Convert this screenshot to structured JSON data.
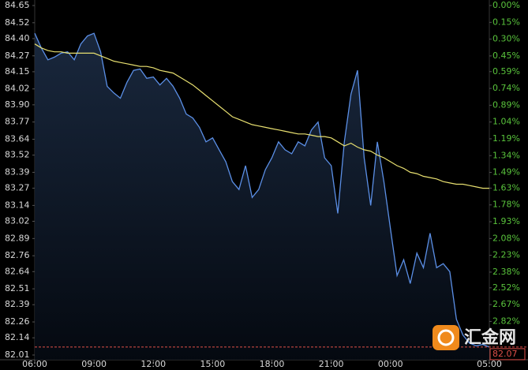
{
  "chart_data": {
    "type": "line",
    "x": [
      "06:00",
      "06:20",
      "06:40",
      "07:00",
      "07:20",
      "07:40",
      "08:00",
      "08:20",
      "08:40",
      "09:00",
      "09:20",
      "09:40",
      "10:00",
      "10:20",
      "10:40",
      "11:00",
      "11:20",
      "11:40",
      "12:00",
      "12:20",
      "12:40",
      "13:00",
      "13:20",
      "13:40",
      "14:00",
      "14:20",
      "14:40",
      "15:00",
      "15:20",
      "15:40",
      "16:00",
      "16:20",
      "16:40",
      "17:00",
      "17:20",
      "17:40",
      "18:00",
      "18:20",
      "18:40",
      "19:00",
      "19:20",
      "19:40",
      "20:00",
      "20:20",
      "20:40",
      "21:00",
      "21:20",
      "21:40",
      "22:00",
      "22:20",
      "22:40",
      "23:00",
      "23:20",
      "23:40",
      "00:00",
      "00:20",
      "00:40",
      "01:00",
      "01:20",
      "01:40",
      "02:00",
      "02:20",
      "02:40",
      "03:00",
      "03:20",
      "03:40",
      "04:00",
      "04:20",
      "04:40",
      "05:00"
    ],
    "series": [
      {
        "color": "#5b8fe6",
        "values": [
          84.44,
          84.33,
          84.24,
          84.26,
          84.29,
          84.3,
          84.24,
          84.36,
          84.42,
          84.44,
          84.3,
          84.04,
          83.99,
          83.95,
          84.07,
          84.16,
          84.17,
          84.1,
          84.11,
          84.05,
          84.1,
          84.04,
          83.95,
          83.83,
          83.8,
          83.73,
          83.62,
          83.65,
          83.56,
          83.47,
          83.32,
          83.26,
          83.44,
          83.2,
          83.26,
          83.41,
          83.5,
          83.62,
          83.56,
          83.53,
          83.62,
          83.59,
          83.71,
          83.77,
          83.5,
          83.44,
          83.08,
          83.62,
          83.98,
          84.16,
          83.5,
          83.14,
          83.62,
          83.32,
          82.96,
          82.61,
          82.73,
          82.55,
          82.78,
          82.67,
          82.93,
          82.67,
          82.7,
          82.64,
          82.28,
          82.16,
          82.1,
          82.08,
          82.09,
          82.07
        ]
      },
      {
        "color": "#e8e070",
        "values": [
          84.36,
          84.33,
          84.31,
          84.3,
          84.3,
          84.29,
          84.29,
          84.29,
          84.29,
          84.29,
          84.27,
          84.25,
          84.23,
          84.22,
          84.21,
          84.2,
          84.19,
          84.19,
          84.18,
          84.16,
          84.15,
          84.14,
          84.11,
          84.08,
          84.05,
          84.01,
          83.97,
          83.93,
          83.89,
          83.85,
          83.81,
          83.79,
          83.77,
          83.75,
          83.74,
          83.73,
          83.72,
          83.71,
          83.7,
          83.69,
          83.68,
          83.68,
          83.67,
          83.66,
          83.66,
          83.65,
          83.62,
          83.59,
          83.61,
          83.58,
          83.56,
          83.55,
          83.52,
          83.5,
          83.47,
          83.44,
          83.42,
          83.39,
          83.38,
          83.36,
          83.35,
          83.34,
          83.32,
          83.31,
          83.3,
          83.3,
          83.29,
          83.28,
          83.27,
          83.27
        ]
      }
    ],
    "ylim": [
      82.01,
      84.65
    ],
    "yticks": [
      {
        "value": 84.65,
        "label": "84.65"
      },
      {
        "value": 84.52,
        "label": "84.52"
      },
      {
        "value": 84.4,
        "label": "84.40"
      },
      {
        "value": 84.27,
        "label": "84.27"
      },
      {
        "value": 84.15,
        "label": "84.15"
      },
      {
        "value": 84.02,
        "label": "84.02"
      },
      {
        "value": 83.9,
        "label": "83.90"
      },
      {
        "value": 83.77,
        "label": "83.77"
      },
      {
        "value": 83.64,
        "label": "83.64"
      },
      {
        "value": 83.52,
        "label": "83.52"
      },
      {
        "value": 83.39,
        "label": "83.39"
      },
      {
        "value": 83.27,
        "label": "83.27"
      },
      {
        "value": 83.14,
        "label": "83.14"
      },
      {
        "value": 83.02,
        "label": "83.02"
      },
      {
        "value": 82.89,
        "label": "82.89"
      },
      {
        "value": 82.76,
        "label": "82.76"
      },
      {
        "value": 82.64,
        "label": "82.64"
      },
      {
        "value": 82.51,
        "label": "82.51"
      },
      {
        "value": 82.39,
        "label": "82.39"
      },
      {
        "value": 82.26,
        "label": "82.26"
      },
      {
        "value": 82.14,
        "label": "82.14"
      },
      {
        "value": 82.01,
        "label": "82.01"
      }
    ],
    "y2lim": [
      3.12,
      0
    ],
    "y2ticks": [
      {
        "value": 0,
        "label": "0.00%"
      },
      {
        "value": 0.15,
        "label": "0.15%"
      },
      {
        "value": 0.3,
        "label": "0.30%"
      },
      {
        "value": 0.45,
        "label": "0.45%"
      },
      {
        "value": 0.59,
        "label": "0.59%"
      },
      {
        "value": 0.74,
        "label": "0.74%"
      },
      {
        "value": 0.89,
        "label": "0.89%"
      },
      {
        "value": 1.04,
        "label": "1.04%"
      },
      {
        "value": 1.19,
        "label": "1.19%"
      },
      {
        "value": 1.34,
        "label": "1.34%"
      },
      {
        "value": 1.49,
        "label": "1.49%"
      },
      {
        "value": 1.63,
        "label": "1.63%"
      },
      {
        "value": 1.78,
        "label": "1.78%"
      },
      {
        "value": 1.93,
        "label": "1.93%"
      },
      {
        "value": 2.08,
        "label": "2.08%"
      },
      {
        "value": 2.23,
        "label": "2.23%"
      },
      {
        "value": 2.38,
        "label": "2.38%"
      },
      {
        "value": 2.52,
        "label": "2.52%"
      },
      {
        "value": 2.67,
        "label": "2.67%"
      },
      {
        "value": 2.82,
        "label": "2.82%"
      }
    ],
    "xticks": [
      "06:00",
      "09:00",
      "12:00",
      "15:00",
      "18:00",
      "21:00",
      "00:00",
      "05:00"
    ],
    "last_value": {
      "value": 82.07,
      "label": "82.07",
      "color": "#e0504a"
    },
    "watermark": "汇金网"
  }
}
